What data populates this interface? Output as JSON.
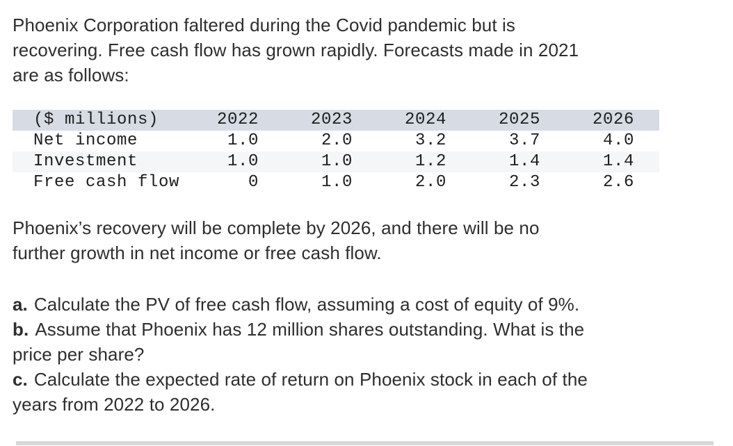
{
  "colors": {
    "background": "#ffffff",
    "body_text": "#2e2e2e",
    "table_text": "#1e1e1e",
    "table_header_bg": "#d6dbe4",
    "table_alt_row_bg": "#f5f6f7",
    "scrollbar_track": "#d8d8d8"
  },
  "problem": {
    "intro_lines": [
      "Phoenix Corporation faltered during the Covid pandemic but is",
      "recovering. Free cash flow has grown rapidly. Forecasts made in 2021",
      "are as follows:"
    ],
    "table": {
      "header": [
        "($ millions)",
        "2022",
        "2023",
        "2024",
        "2025",
        "2026"
      ],
      "rows": [
        {
          "label": "Net income",
          "values": [
            "1.0",
            "2.0",
            "3.2",
            "3.7",
            "4.0"
          ]
        },
        {
          "label": "Investment",
          "values": [
            "1.0",
            "1.0",
            "1.2",
            "1.4",
            "1.4"
          ]
        },
        {
          "label": "Free cash flow",
          "values": [
            "0",
            "1.0",
            "2.0",
            "2.3",
            "2.6"
          ]
        }
      ]
    },
    "note_lines": [
      "Phoenix’s recovery will be complete by 2026, and there will be no",
      "further growth in net income or free cash flow."
    ],
    "questions": [
      {
        "label": "a.",
        "lines": [
          "Calculate the PV of free cash flow, assuming a cost of equity of 9%."
        ]
      },
      {
        "label": "b.",
        "lines": [
          "Assume that Phoenix has 12 million shares outstanding. What is the",
          "price per share?"
        ]
      },
      {
        "label": "c.",
        "lines": [
          "Calculate the expected rate of return on Phoenix stock in each of the",
          "years from 2022 to 2026."
        ]
      }
    ]
  }
}
